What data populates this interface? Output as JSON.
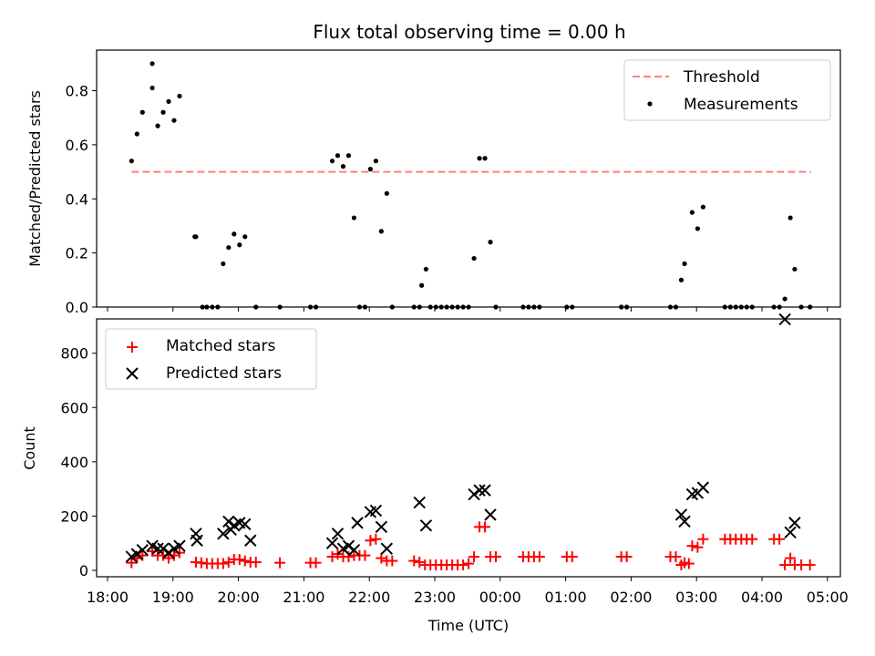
{
  "chart_data": [
    {
      "type": "scatter",
      "title": "Flux total observing time = 0.00 h",
      "xlabel": "",
      "ylabel": "Matched/Predicted stars",
      "xlim": [
        "18:00",
        "05:00"
      ],
      "ylim": [
        0,
        0.95
      ],
      "yticks": [
        "0.0",
        "0.2",
        "0.4",
        "0.6",
        "0.8"
      ],
      "grid": false,
      "legend_position": "top-right",
      "threshold": {
        "name": "Threshold",
        "value": 0.5,
        "x_range": [
          "18:22",
          "04:45"
        ],
        "color": "#ff7f7f"
      },
      "series": [
        {
          "name": "Measurements",
          "marker": "dot",
          "color": "#000000",
          "points": [
            [
              "18:22",
              0.54
            ],
            [
              "18:27",
              0.64
            ],
            [
              "18:32",
              0.72
            ],
            [
              "18:41",
              0.9
            ],
            [
              "18:41",
              0.81
            ],
            [
              "18:46",
              0.67
            ],
            [
              "18:51",
              0.72
            ],
            [
              "18:56",
              0.76
            ],
            [
              "19:01",
              0.69
            ],
            [
              "19:06",
              0.78
            ],
            [
              "19:20",
              0.26
            ],
            [
              "19:21",
              0.26
            ],
            [
              "19:27",
              0.0
            ],
            [
              "19:31",
              0.0
            ],
            [
              "19:36",
              0.0
            ],
            [
              "19:41",
              0.0
            ],
            [
              "19:46",
              0.16
            ],
            [
              "19:51",
              0.22
            ],
            [
              "19:56",
              0.27
            ],
            [
              "20:01",
              0.23
            ],
            [
              "20:06",
              0.26
            ],
            [
              "20:16",
              0.0
            ],
            [
              "20:38",
              0.0
            ],
            [
              "21:06",
              0.0
            ],
            [
              "21:11",
              0.0
            ],
            [
              "21:26",
              0.54
            ],
            [
              "21:31",
              0.56
            ],
            [
              "21:36",
              0.52
            ],
            [
              "21:41",
              0.56
            ],
            [
              "21:46",
              0.33
            ],
            [
              "21:51",
              0.0
            ],
            [
              "21:56",
              0.0
            ],
            [
              "22:01",
              0.51
            ],
            [
              "22:06",
              0.54
            ],
            [
              "22:11",
              0.28
            ],
            [
              "22:16",
              0.42
            ],
            [
              "22:21",
              0.0
            ],
            [
              "22:41",
              0.0
            ],
            [
              "22:46",
              0.0
            ],
            [
              "22:48",
              0.08
            ],
            [
              "22:52",
              0.14
            ],
            [
              "22:56",
              0.0
            ],
            [
              "23:01",
              0.0
            ],
            [
              "23:06",
              0.0
            ],
            [
              "23:11",
              0.0
            ],
            [
              "23:16",
              0.0
            ],
            [
              "23:21",
              0.0
            ],
            [
              "23:26",
              0.0
            ],
            [
              "23:31",
              0.0
            ],
            [
              "23:36",
              0.18
            ],
            [
              "23:41",
              0.55
            ],
            [
              "23:46",
              0.55
            ],
            [
              "23:51",
              0.24
            ],
            [
              "23:56",
              0.0
            ],
            [
              "00:21",
              0.0
            ],
            [
              "00:26",
              0.0
            ],
            [
              "00:31",
              0.0
            ],
            [
              "00:36",
              0.0
            ],
            [
              "01:01",
              0.0
            ],
            [
              "01:06",
              0.0
            ],
            [
              "01:51",
              0.0
            ],
            [
              "01:56",
              0.0
            ],
            [
              "02:36",
              0.0
            ],
            [
              "02:41",
              0.0
            ],
            [
              "02:46",
              0.1
            ],
            [
              "02:49",
              0.16
            ],
            [
              "02:56",
              0.35
            ],
            [
              "03:01",
              0.29
            ],
            [
              "03:06",
              0.37
            ],
            [
              "03:26",
              0.0
            ],
            [
              "03:31",
              0.0
            ],
            [
              "03:36",
              0.0
            ],
            [
              "03:41",
              0.0
            ],
            [
              "03:46",
              0.0
            ],
            [
              "03:51",
              0.0
            ],
            [
              "04:11",
              0.0
            ],
            [
              "04:16",
              0.0
            ],
            [
              "04:21",
              0.03
            ],
            [
              "04:26",
              0.33
            ],
            [
              "04:30",
              0.14
            ],
            [
              "04:36",
              0.0
            ],
            [
              "04:44",
              0.0
            ]
          ]
        }
      ]
    },
    {
      "type": "scatter",
      "title": "",
      "xlabel": "Time (UTC)",
      "ylabel": "Count",
      "xlim": [
        "18:00",
        "05:00"
      ],
      "ylim": [
        0,
        950
      ],
      "xticks": [
        "18:00",
        "19:00",
        "20:00",
        "21:00",
        "22:00",
        "23:00",
        "00:00",
        "01:00",
        "02:00",
        "03:00",
        "04:00",
        "05:00"
      ],
      "yticks": [
        "0",
        "200",
        "400",
        "600",
        "800"
      ],
      "grid": false,
      "legend_position": "top-left",
      "series": [
        {
          "name": "Matched stars",
          "marker": "plus",
          "color": "#ff0000",
          "points": [
            [
              "18:22",
              28
            ],
            [
              "18:27",
              45
            ],
            [
              "18:32",
              55
            ],
            [
              "18:41",
              70
            ],
            [
              "18:46",
              55
            ],
            [
              "18:51",
              55
            ],
            [
              "18:56",
              45
            ],
            [
              "19:01",
              55
            ],
            [
              "19:06",
              65
            ],
            [
              "19:21",
              30
            ],
            [
              "19:26",
              28
            ],
            [
              "19:31",
              25
            ],
            [
              "19:36",
              25
            ],
            [
              "19:41",
              25
            ],
            [
              "19:46",
              25
            ],
            [
              "19:51",
              30
            ],
            [
              "19:56",
              40
            ],
            [
              "20:01",
              40
            ],
            [
              "20:06",
              35
            ],
            [
              "20:11",
              30
            ],
            [
              "20:16",
              30
            ],
            [
              "20:38",
              28
            ],
            [
              "21:06",
              28
            ],
            [
              "21:11",
              28
            ],
            [
              "21:26",
              50
            ],
            [
              "21:31",
              60
            ],
            [
              "21:36",
              50
            ],
            [
              "21:41",
              50
            ],
            [
              "21:46",
              55
            ],
            [
              "21:51",
              55
            ],
            [
              "21:56",
              55
            ],
            [
              "22:01",
              110
            ],
            [
              "22:06",
              115
            ],
            [
              "22:11",
              45
            ],
            [
              "22:16",
              35
            ],
            [
              "22:21",
              35
            ],
            [
              "22:41",
              35
            ],
            [
              "22:46",
              30
            ],
            [
              "22:51",
              20
            ],
            [
              "22:56",
              20
            ],
            [
              "23:01",
              20
            ],
            [
              "23:06",
              20
            ],
            [
              "23:11",
              20
            ],
            [
              "23:16",
              20
            ],
            [
              "23:21",
              20
            ],
            [
              "23:26",
              20
            ],
            [
              "23:31",
              25
            ],
            [
              "23:36",
              50
            ],
            [
              "23:41",
              160
            ],
            [
              "23:46",
              160
            ],
            [
              "23:51",
              50
            ],
            [
              "23:56",
              50
            ],
            [
              "00:21",
              50
            ],
            [
              "00:26",
              50
            ],
            [
              "00:31",
              50
            ],
            [
              "00:36",
              50
            ],
            [
              "01:01",
              50
            ],
            [
              "01:06",
              50
            ],
            [
              "01:51",
              50
            ],
            [
              "01:56",
              50
            ],
            [
              "02:36",
              50
            ],
            [
              "02:41",
              50
            ],
            [
              "02:46",
              20
            ],
            [
              "02:49",
              28
            ],
            [
              "02:53",
              25
            ],
            [
              "02:56",
              90
            ],
            [
              "03:01",
              85
            ],
            [
              "03:06",
              115
            ],
            [
              "03:26",
              115
            ],
            [
              "03:31",
              115
            ],
            [
              "03:36",
              115
            ],
            [
              "03:41",
              115
            ],
            [
              "03:46",
              115
            ],
            [
              "03:51",
              115
            ],
            [
              "04:11",
              115
            ],
            [
              "04:16",
              115
            ],
            [
              "04:21",
              20
            ],
            [
              "04:26",
              45
            ],
            [
              "04:30",
              20
            ],
            [
              "04:36",
              20
            ],
            [
              "04:44",
              20
            ]
          ]
        },
        {
          "name": "Predicted stars",
          "marker": "x",
          "color": "#000000",
          "points": [
            [
              "18:22",
              50
            ],
            [
              "18:27",
              60
            ],
            [
              "18:32",
              75
            ],
            [
              "18:41",
              90
            ],
            [
              "18:46",
              80
            ],
            [
              "18:51",
              80
            ],
            [
              "18:56",
              65
            ],
            [
              "19:01",
              80
            ],
            [
              "19:06",
              90
            ],
            [
              "19:21",
              135
            ],
            [
              "19:22",
              110
            ],
            [
              "19:46",
              135
            ],
            [
              "19:51",
              180
            ],
            [
              "19:53",
              150
            ],
            [
              "19:56",
              165
            ],
            [
              "20:01",
              175
            ],
            [
              "20:06",
              170
            ],
            [
              "20:11",
              110
            ],
            [
              "21:26",
              100
            ],
            [
              "21:31",
              135
            ],
            [
              "21:36",
              80
            ],
            [
              "21:41",
              90
            ],
            [
              "21:46",
              75
            ],
            [
              "21:49",
              175
            ],
            [
              "22:01",
              215
            ],
            [
              "22:06",
              220
            ],
            [
              "22:11",
              160
            ],
            [
              "22:16",
              80
            ],
            [
              "22:46",
              250
            ],
            [
              "22:52",
              165
            ],
            [
              "23:36",
              280
            ],
            [
              "23:41",
              295
            ],
            [
              "23:46",
              295
            ],
            [
              "23:51",
              205
            ],
            [
              "02:46",
              205
            ],
            [
              "02:49",
              180
            ],
            [
              "02:56",
              280
            ],
            [
              "03:01",
              285
            ],
            [
              "03:06",
              305
            ],
            [
              "04:21",
              925
            ],
            [
              "04:26",
              140
            ],
            [
              "04:30",
              175
            ]
          ]
        }
      ]
    }
  ]
}
